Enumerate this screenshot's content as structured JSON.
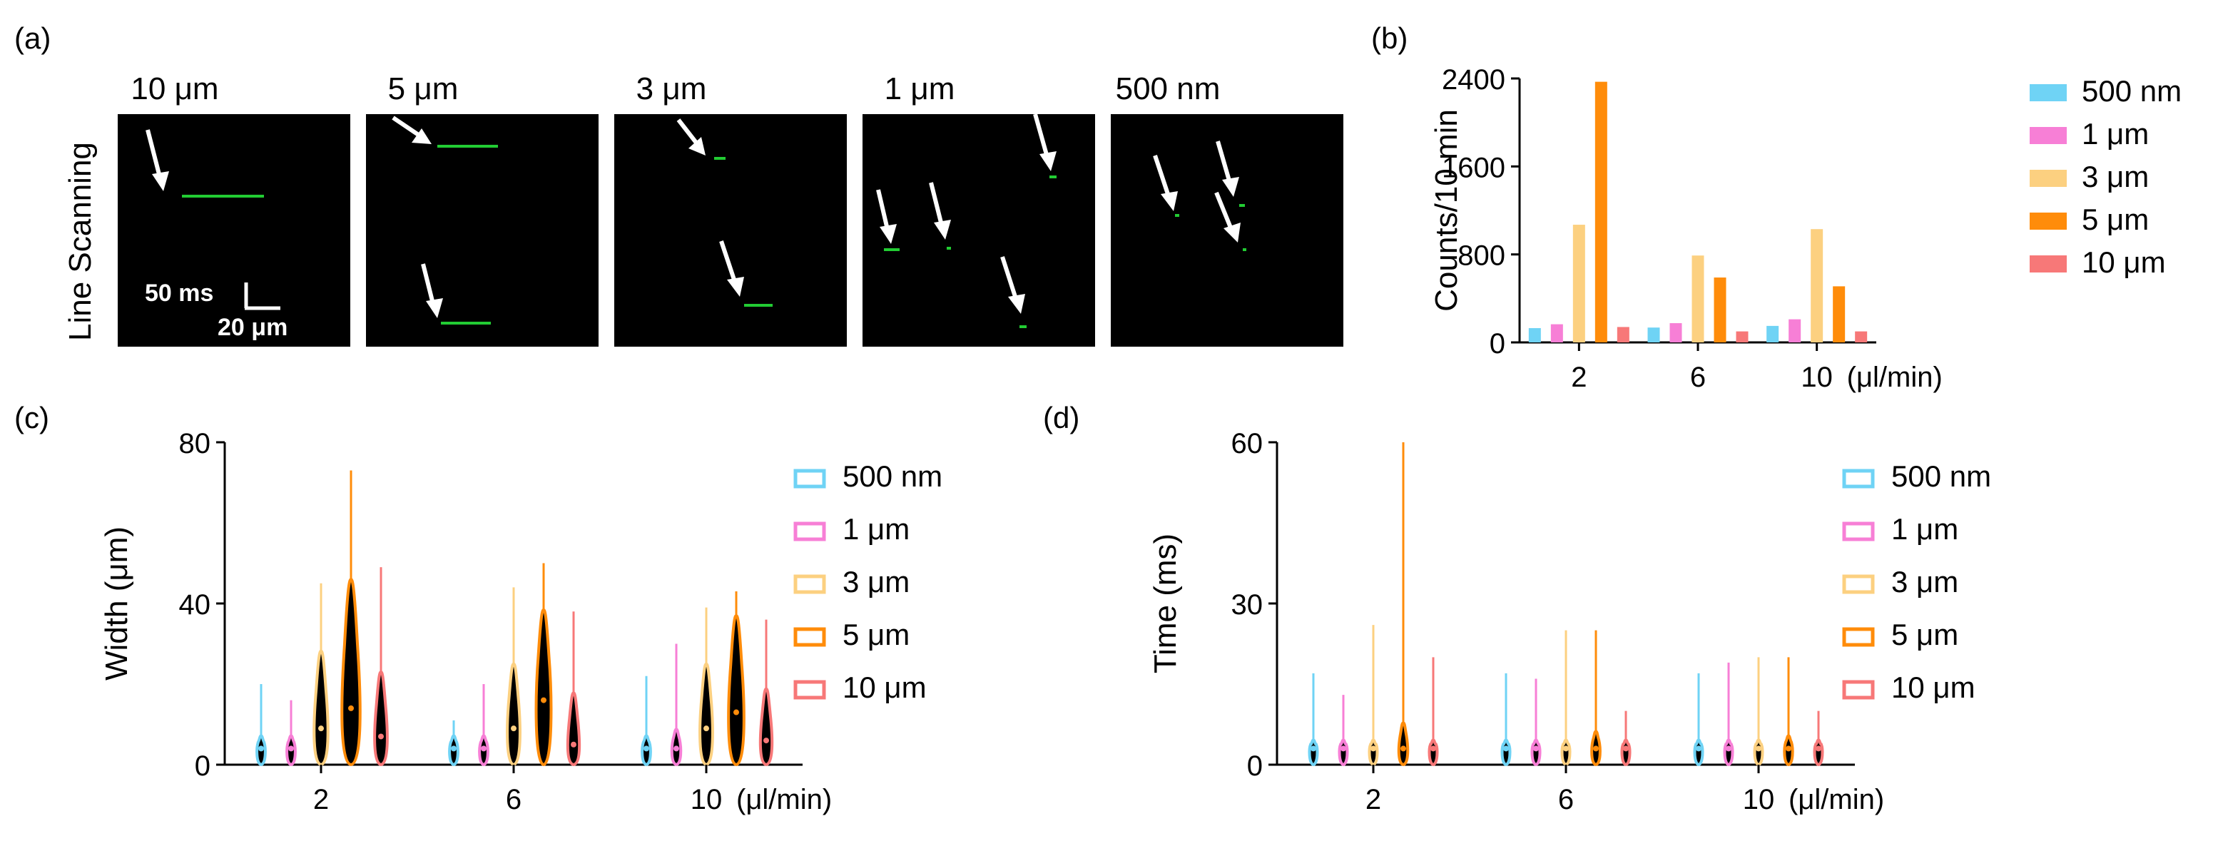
{
  "panel_labels": {
    "a": "(a)",
    "b": "(b)",
    "c": "(c)",
    "d": "(d)"
  },
  "panel_a": {
    "row_label": "Line Scanning",
    "titles": [
      "10 μm",
      "5 μm",
      "3 μm",
      "1 μm",
      "500 nm"
    ],
    "scale_time": "50 ms",
    "scale_length": "20 μm",
    "line_color": "#22cc33",
    "arrow_color": "#ffffff"
  },
  "chart_data": [
    {
      "panel": "b",
      "type": "bar",
      "ylabel": "Counts/10 min",
      "x_unit_label": "(μl/min)",
      "categories": [
        "2",
        "6",
        "10"
      ],
      "ylim": [
        0,
        2400
      ],
      "yticks": [
        0,
        800,
        1600,
        2400
      ],
      "series": [
        {
          "name": "500 nm",
          "color": "#6fd3f5",
          "values": [
            130,
            135,
            150
          ]
        },
        {
          "name": "1 μm",
          "color": "#f77fd6",
          "values": [
            165,
            175,
            210
          ]
        },
        {
          "name": "3 μm",
          "color": "#fcd080",
          "values": [
            1070,
            790,
            1030
          ]
        },
        {
          "name": "5 μm",
          "color": "#ff8c0a",
          "values": [
            2370,
            590,
            510
          ]
        },
        {
          "name": "10 μm",
          "color": "#f77878",
          "values": [
            140,
            100,
            100
          ]
        }
      ],
      "legend": "right"
    },
    {
      "panel": "c",
      "type": "violin",
      "ylabel": "Width (μm)",
      "x_unit_label": "(μl/min)",
      "categories": [
        "2",
        "6",
        "10"
      ],
      "ylim": [
        0,
        80
      ],
      "yticks": [
        0,
        40,
        80
      ],
      "series": [
        {
          "name": "500 nm",
          "color": "#6fd3f5",
          "max": [
            20,
            11,
            22
          ],
          "median": [
            4,
            4,
            4
          ],
          "spread": [
            2,
            2,
            2
          ]
        },
        {
          "name": "1 μm",
          "color": "#f77fd6",
          "max": [
            16,
            20,
            30
          ],
          "median": [
            4,
            4,
            4
          ],
          "spread": [
            2,
            2,
            3
          ]
        },
        {
          "name": "3 μm",
          "color": "#fcd080",
          "max": [
            45,
            44,
            39
          ],
          "median": [
            9,
            9,
            9
          ],
          "spread": [
            12,
            10,
            10
          ]
        },
        {
          "name": "5 μm",
          "color": "#ff8c0a",
          "max": [
            73,
            50,
            43
          ],
          "median": [
            14,
            16,
            13
          ],
          "spread": [
            20,
            14,
            15
          ]
        },
        {
          "name": "10 μm",
          "color": "#f77878",
          "max": [
            49,
            38,
            36
          ],
          "median": [
            7,
            5,
            6
          ],
          "spread": [
            10,
            8,
            8
          ]
        }
      ],
      "legend": "right"
    },
    {
      "panel": "d",
      "type": "violin",
      "ylabel": "Time (ms)",
      "x_unit_label": "(μl/min)",
      "categories": [
        "2",
        "6",
        "10"
      ],
      "ylim": [
        0,
        60
      ],
      "yticks": [
        0,
        30,
        60
      ],
      "series": [
        {
          "name": "500 nm",
          "color": "#6fd3f5",
          "max": [
            17,
            17,
            17
          ],
          "median": [
            3,
            3,
            3
          ],
          "spread": [
            1,
            1,
            1
          ]
        },
        {
          "name": "1 μm",
          "color": "#f77fd6",
          "max": [
            13,
            16,
            19
          ],
          "median": [
            3,
            3,
            3
          ],
          "spread": [
            1,
            1,
            1
          ]
        },
        {
          "name": "3 μm",
          "color": "#fcd080",
          "max": [
            26,
            25,
            20
          ],
          "median": [
            3,
            3,
            3
          ],
          "spread": [
            1,
            1,
            1
          ]
        },
        {
          "name": "5 μm",
          "color": "#ff8c0a",
          "max": [
            60,
            25,
            20
          ],
          "median": [
            3,
            3,
            3
          ],
          "spread": [
            3,
            2,
            1.5
          ]
        },
        {
          "name": "10 μm",
          "color": "#f77878",
          "max": [
            20,
            10,
            10
          ],
          "median": [
            3,
            3,
            3
          ],
          "spread": [
            1,
            1,
            1
          ]
        }
      ],
      "legend": "right"
    }
  ]
}
